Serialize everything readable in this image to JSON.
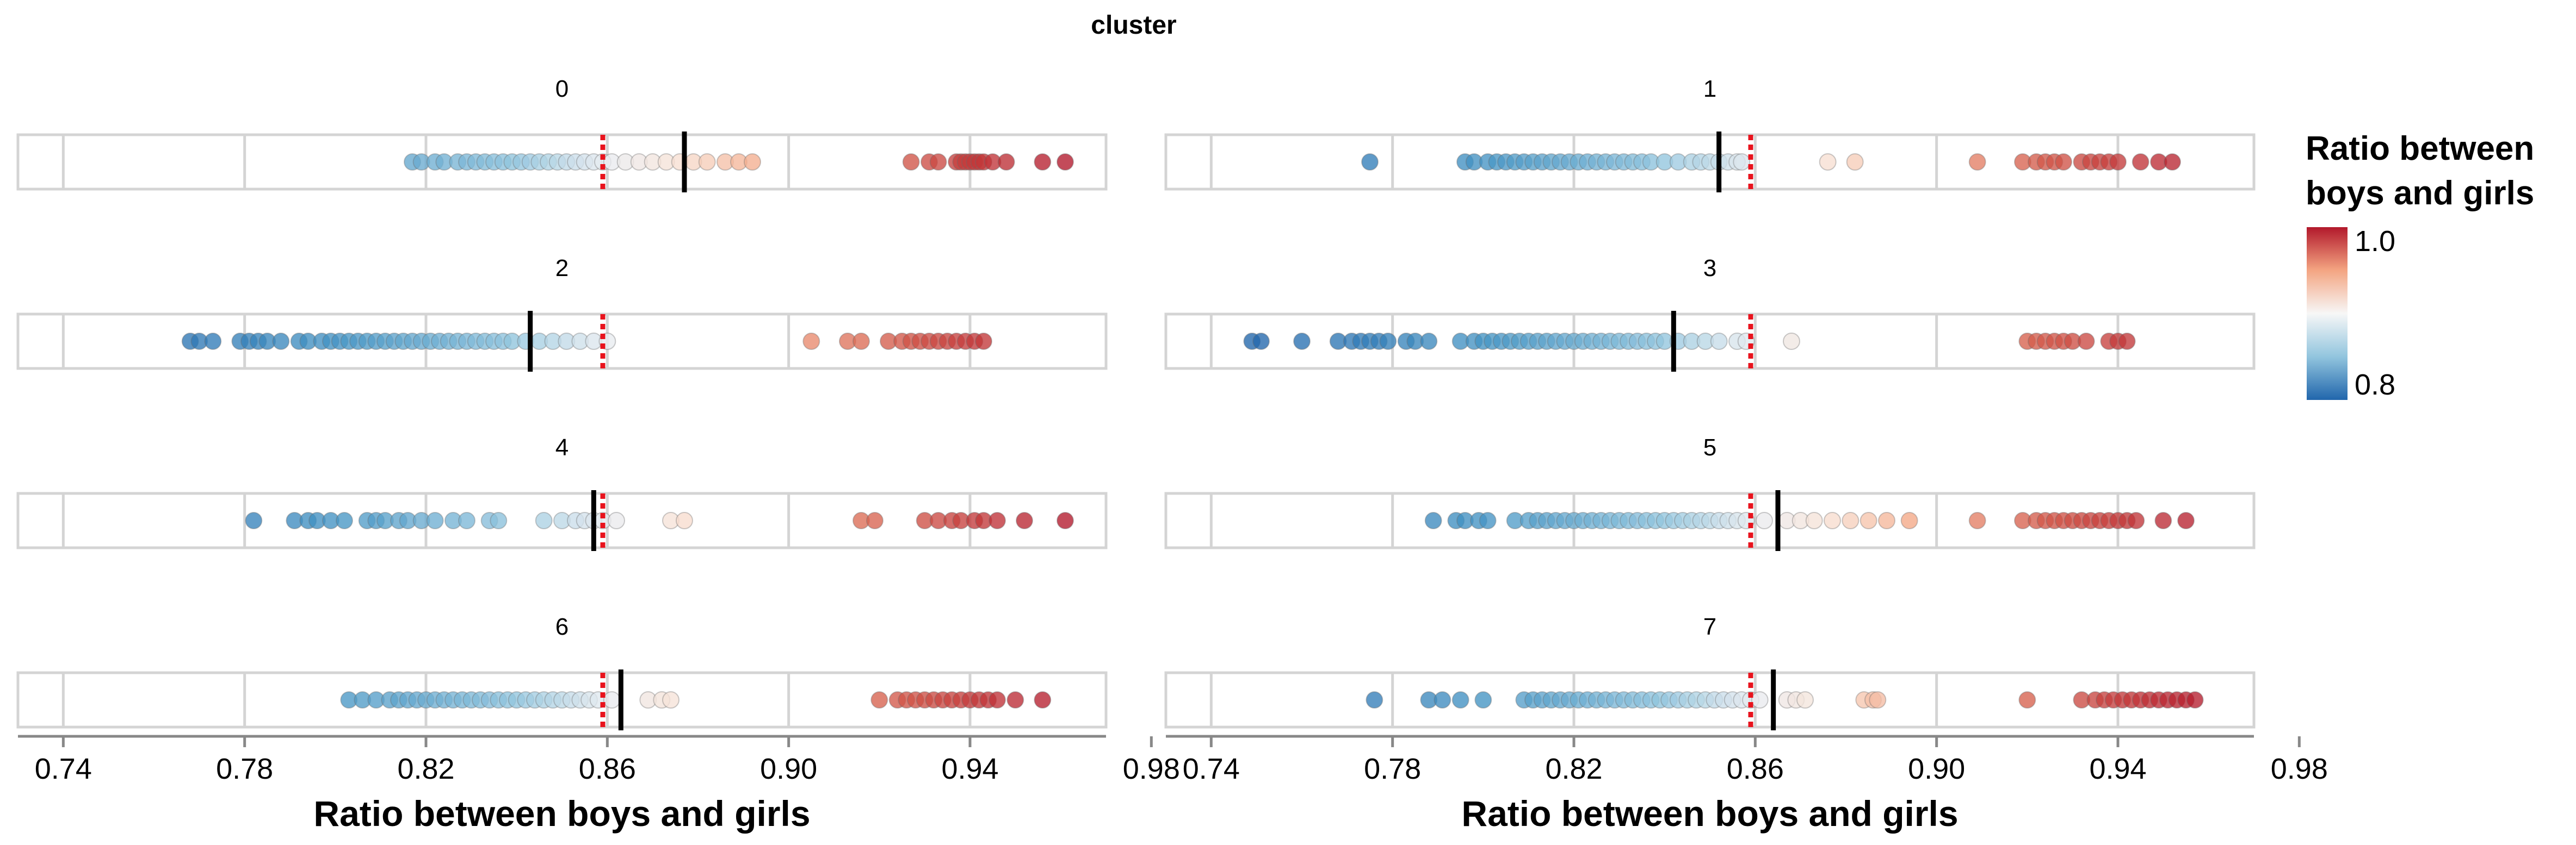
{
  "chart_data": {
    "type": "scatter",
    "facet_title": "cluster",
    "xlabel": "Ratio between boys and girls",
    "xlim": [
      0.73,
      0.97
    ],
    "xticks": [
      "0.74",
      "0.78",
      "0.82",
      "0.86",
      "0.90",
      "0.94",
      "0.98"
    ],
    "reference_line": {
      "value": 0.859,
      "color": "#e8131d",
      "style": "dotted"
    },
    "legend": {
      "title_lines": [
        "Ratio between",
        "boys and girls"
      ],
      "max_label": "1.0",
      "min_label": "0.8",
      "position": "right",
      "colors": [
        "#b2182b",
        "#f4a582",
        "#f7f7f7",
        "#92c5de",
        "#2166ac"
      ]
    },
    "panels": [
      {
        "label": "0",
        "mean": 0.877,
        "points": [
          0.817,
          0.819,
          0.822,
          0.824,
          0.827,
          0.829,
          0.831,
          0.833,
          0.835,
          0.837,
          0.839,
          0.841,
          0.843,
          0.845,
          0.847,
          0.849,
          0.851,
          0.853,
          0.855,
          0.857,
          0.859,
          0.861,
          0.864,
          0.867,
          0.87,
          0.873,
          0.876,
          0.879,
          0.882,
          0.886,
          0.889,
          0.892,
          0.927,
          0.931,
          0.933,
          0.937,
          0.938,
          0.939,
          0.94,
          0.941,
          0.942,
          0.943,
          0.945,
          0.948,
          0.956,
          0.961
        ]
      },
      {
        "label": "1",
        "mean": 0.852,
        "points": [
          0.775,
          0.796,
          0.798,
          0.801,
          0.803,
          0.805,
          0.807,
          0.809,
          0.811,
          0.813,
          0.815,
          0.817,
          0.819,
          0.821,
          0.823,
          0.825,
          0.827,
          0.829,
          0.831,
          0.833,
          0.835,
          0.837,
          0.84,
          0.843,
          0.846,
          0.848,
          0.85,
          0.852,
          0.854,
          0.856,
          0.857,
          0.876,
          0.882,
          0.909,
          0.919,
          0.922,
          0.924,
          0.926,
          0.928,
          0.932,
          0.934,
          0.936,
          0.938,
          0.94,
          0.945,
          0.949,
          0.952
        ]
      },
      {
        "label": "2",
        "mean": 0.843,
        "points": [
          0.768,
          0.77,
          0.773,
          0.779,
          0.781,
          0.783,
          0.785,
          0.788,
          0.792,
          0.794,
          0.797,
          0.799,
          0.801,
          0.803,
          0.805,
          0.807,
          0.809,
          0.811,
          0.813,
          0.815,
          0.817,
          0.819,
          0.821,
          0.823,
          0.825,
          0.827,
          0.829,
          0.831,
          0.833,
          0.835,
          0.837,
          0.839,
          0.842,
          0.845,
          0.848,
          0.851,
          0.854,
          0.857,
          0.86,
          0.905,
          0.913,
          0.916,
          0.922,
          0.925,
          0.927,
          0.929,
          0.931,
          0.933,
          0.935,
          0.937,
          0.939,
          0.941,
          0.943
        ]
      },
      {
        "label": "3",
        "mean": 0.842,
        "points": [
          0.749,
          0.751,
          0.76,
          0.768,
          0.771,
          0.773,
          0.775,
          0.777,
          0.779,
          0.783,
          0.785,
          0.788,
          0.795,
          0.798,
          0.8,
          0.802,
          0.804,
          0.806,
          0.808,
          0.81,
          0.812,
          0.814,
          0.816,
          0.818,
          0.82,
          0.822,
          0.824,
          0.826,
          0.828,
          0.83,
          0.832,
          0.834,
          0.836,
          0.838,
          0.84,
          0.843,
          0.846,
          0.849,
          0.852,
          0.856,
          0.858,
          0.868,
          0.92,
          0.922,
          0.924,
          0.926,
          0.928,
          0.93,
          0.933,
          0.938,
          0.94,
          0.942
        ]
      },
      {
        "label": "4",
        "mean": 0.857,
        "points": [
          0.782,
          0.791,
          0.794,
          0.796,
          0.799,
          0.802,
          0.807,
          0.809,
          0.811,
          0.814,
          0.816,
          0.819,
          0.822,
          0.826,
          0.829,
          0.834,
          0.836,
          0.846,
          0.85,
          0.853,
          0.855,
          0.857,
          0.859,
          0.862,
          0.874,
          0.877,
          0.916,
          0.919,
          0.93,
          0.933,
          0.936,
          0.938,
          0.941,
          0.943,
          0.946,
          0.952,
          0.961
        ]
      },
      {
        "label": "5",
        "mean": 0.865,
        "points": [
          0.789,
          0.794,
          0.796,
          0.799,
          0.801,
          0.807,
          0.81,
          0.812,
          0.814,
          0.816,
          0.818,
          0.82,
          0.822,
          0.824,
          0.826,
          0.828,
          0.83,
          0.832,
          0.834,
          0.836,
          0.838,
          0.84,
          0.842,
          0.844,
          0.846,
          0.848,
          0.85,
          0.852,
          0.854,
          0.856,
          0.858,
          0.862,
          0.867,
          0.87,
          0.873,
          0.877,
          0.881,
          0.885,
          0.889,
          0.894,
          0.909,
          0.919,
          0.922,
          0.924,
          0.926,
          0.928,
          0.93,
          0.932,
          0.934,
          0.936,
          0.938,
          0.94,
          0.942,
          0.944,
          0.95,
          0.955
        ]
      },
      {
        "label": "6",
        "mean": 0.863,
        "points": [
          0.803,
          0.806,
          0.809,
          0.812,
          0.814,
          0.816,
          0.818,
          0.82,
          0.822,
          0.824,
          0.826,
          0.828,
          0.83,
          0.832,
          0.834,
          0.836,
          0.838,
          0.84,
          0.842,
          0.844,
          0.846,
          0.848,
          0.85,
          0.852,
          0.854,
          0.856,
          0.858,
          0.861,
          0.869,
          0.872,
          0.874,
          0.92,
          0.924,
          0.926,
          0.928,
          0.93,
          0.932,
          0.934,
          0.936,
          0.938,
          0.94,
          0.942,
          0.944,
          0.946,
          0.95,
          0.956
        ]
      },
      {
        "label": "7",
        "mean": 0.864,
        "points": [
          0.776,
          0.788,
          0.791,
          0.795,
          0.8,
          0.809,
          0.811,
          0.813,
          0.815,
          0.817,
          0.819,
          0.821,
          0.823,
          0.825,
          0.827,
          0.829,
          0.831,
          0.833,
          0.835,
          0.837,
          0.839,
          0.841,
          0.843,
          0.845,
          0.847,
          0.849,
          0.851,
          0.853,
          0.855,
          0.857,
          0.859,
          0.861,
          0.867,
          0.869,
          0.871,
          0.884,
          0.886,
          0.887,
          0.92,
          0.932,
          0.935,
          0.937,
          0.939,
          0.941,
          0.943,
          0.945,
          0.947,
          0.949,
          0.951,
          0.953,
          0.955,
          0.957
        ]
      }
    ]
  }
}
